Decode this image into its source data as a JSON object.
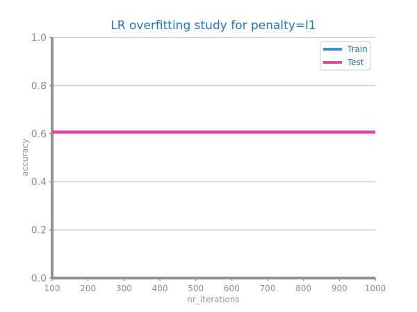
{
  "chart_data": {
    "type": "line",
    "title": "LR overfitting study for penalty=l1",
    "xlabel": "nr_iterations",
    "ylabel": "accuracy",
    "xlim": [
      100,
      1000
    ],
    "ylim": [
      0.0,
      1.0
    ],
    "x_ticks": [
      100,
      200,
      300,
      400,
      500,
      600,
      700,
      800,
      900,
      1000
    ],
    "y_ticks": [
      "0.0",
      "0.2",
      "0.4",
      "0.6",
      "0.8",
      "1.0"
    ],
    "grid": "horizontal",
    "legend_position": "top-right",
    "x": [
      100,
      200,
      300,
      400,
      500,
      600,
      700,
      800,
      900,
      1000
    ],
    "series": [
      {
        "name": "Train",
        "color": "#2b9bd6",
        "values": [
          0.607,
          0.607,
          0.607,
          0.607,
          0.607,
          0.607,
          0.607,
          0.607,
          0.607,
          0.607
        ]
      },
      {
        "name": "Test",
        "color": "#e8449a",
        "values": [
          0.607,
          0.607,
          0.607,
          0.607,
          0.607,
          0.607,
          0.607,
          0.607,
          0.607,
          0.607
        ]
      }
    ]
  }
}
